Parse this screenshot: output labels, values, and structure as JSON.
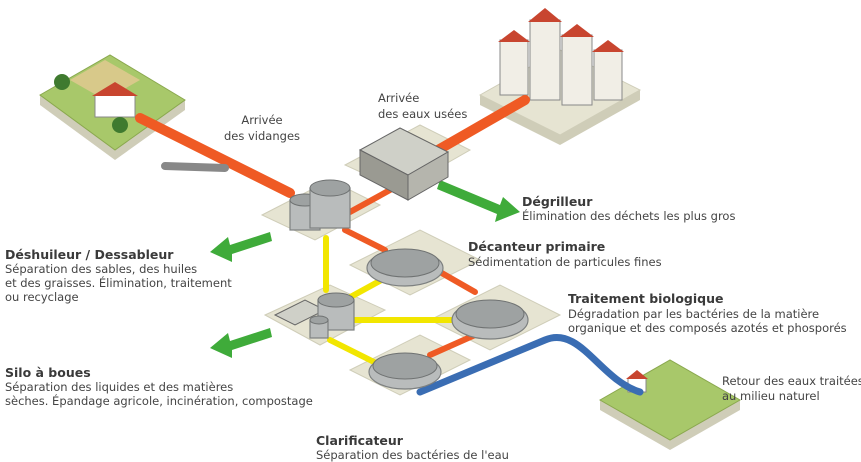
{
  "nodes": [
    {
      "description": [
        "Arrivée",
        "des vidanges"
      ]
    },
    {
      "description": [
        "Arrivée",
        "des eaux usées"
      ]
    },
    {
      "title": "Dégrilleur",
      "description": [
        "Élimination des déchets les plus gros"
      ]
    },
    {
      "title": "Déshuileur / Dessableur",
      "description": [
        "Séparation des sables, des huiles",
        "et des graisses. Élimination, traitement",
        "ou recyclage"
      ]
    },
    {
      "title": "Décanteur primaire",
      "description": [
        "Sédimentation de particules fines"
      ]
    },
    {
      "title": "Traitement biologique",
      "description": [
        "Dégradation par les bactéries de la matière",
        "organique et des composés azotés et phosporés"
      ]
    },
    {
      "title": "Silo à boues",
      "description": [
        "Séparation des liquides et des matières",
        "sèches. Épandage agricole, incinération, compostage"
      ]
    },
    {
      "description": [
        "Retour des eaux traitées",
        "au milieu naturel"
      ]
    },
    {
      "title": "Clarificateur",
      "description": [
        "Séparation des bactéries de l'eau"
      ]
    }
  ]
}
